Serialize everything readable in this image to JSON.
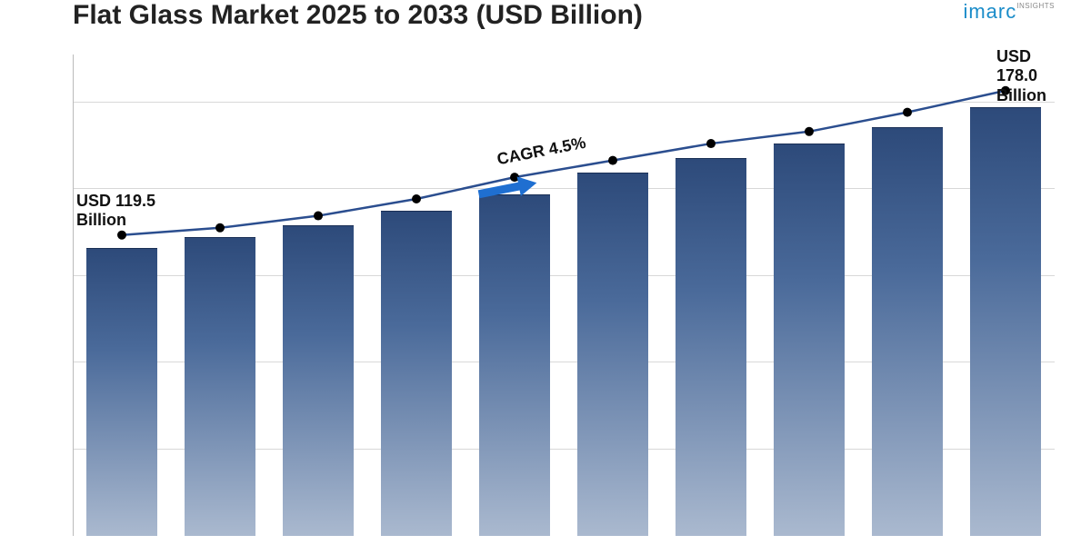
{
  "title": "Flat Glass Market 2025 to 2033 (USD Billion)",
  "logo": {
    "main": "imarc",
    "sub": "INSIGHTS"
  },
  "chart": {
    "type": "bar+line",
    "background_color": "#ffffff",
    "grid_color": "#d8d8d8",
    "y_axis_color": "#bbbbbb",
    "bar_gradient_top": "#2d4a7a",
    "bar_gradient_mid": "#4a6a9a",
    "bar_gradient_bottom": "#aab9cf",
    "bar_border_top": "#1a2f55",
    "line_color": "#2b4e8f",
    "line_width": 2.5,
    "marker_fill": "#000000",
    "marker_radius": 5,
    "bar_width_ratio": 0.72,
    "n_bars": 10,
    "values": [
      119.5,
      124,
      129,
      135,
      142,
      151,
      157,
      163,
      170,
      178.0
    ],
    "line_values": [
      125,
      128,
      133,
      140,
      149,
      156,
      163,
      168,
      176,
      185
    ],
    "ymin": 0,
    "ymax": 200,
    "grid_lines": [
      0.18,
      0.36,
      0.54,
      0.72,
      0.9
    ],
    "title_fontsize": 30,
    "title_color": "#222222"
  },
  "callouts": {
    "start": {
      "amount": "USD 119.5",
      "unit": "Billion"
    },
    "end": {
      "amount": "USD 178.0",
      "unit": "Billion"
    }
  },
  "cagr": {
    "label": "CAGR 4.5%",
    "arrow_color": "#1f6fd1",
    "rotation_deg": -14
  }
}
